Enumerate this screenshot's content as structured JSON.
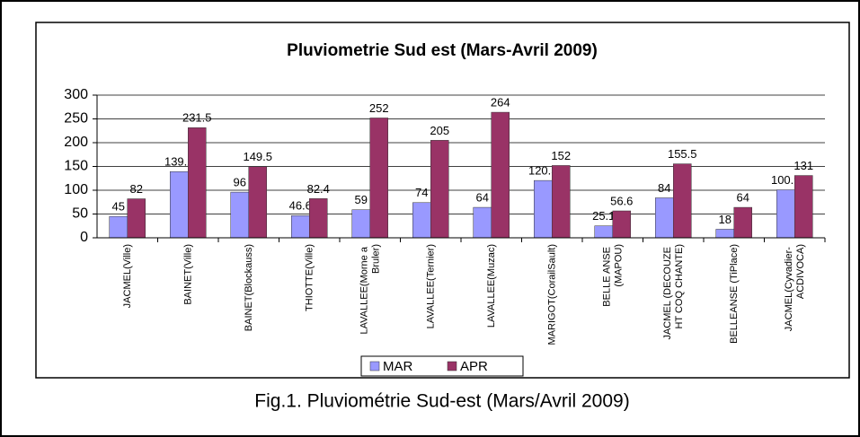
{
  "chart_data": {
    "type": "bar",
    "title": "Pluviometrie Sud est (Mars-Avril 2009)",
    "caption": "Fig.1. Pluviométrie Sud-est (Mars/Avril 2009)",
    "categories": [
      "JACMEL(Ville)",
      "BAINET(Ville)",
      "BAINET(Blockauss)",
      "THIOTTE(Ville)",
      "LAVALLEE(Morne a\nBruler)",
      "LAVALLEE(Ternier)",
      "LAVALLEE(Muzac)",
      "MARIGOT(CorailSault)",
      "BELLE ANSE\n(MAPOU)",
      "JACMEL (DECOUZE\nHT COQ CHANTE)",
      "BELLEANSE (TiPlace)",
      "JACMEL(Cyvadier-\nACDIVOCA)"
    ],
    "series": [
      {
        "name": "MAR",
        "color": "#9999ff",
        "values": [
          45,
          139.2,
          96,
          46.6,
          59,
          74,
          64,
          120.5,
          25.1,
          84,
          18,
          100.9
        ]
      },
      {
        "name": "APR",
        "color": "#993366",
        "values": [
          82,
          231.5,
          149.5,
          82.4,
          252,
          205,
          264,
          152,
          56.6,
          155.5,
          64,
          131
        ]
      }
    ],
    "ylim": [
      0,
      300
    ],
    "yticks": [
      0,
      50,
      100,
      150,
      200,
      250,
      300
    ],
    "grid": true,
    "legend": "bottom"
  }
}
